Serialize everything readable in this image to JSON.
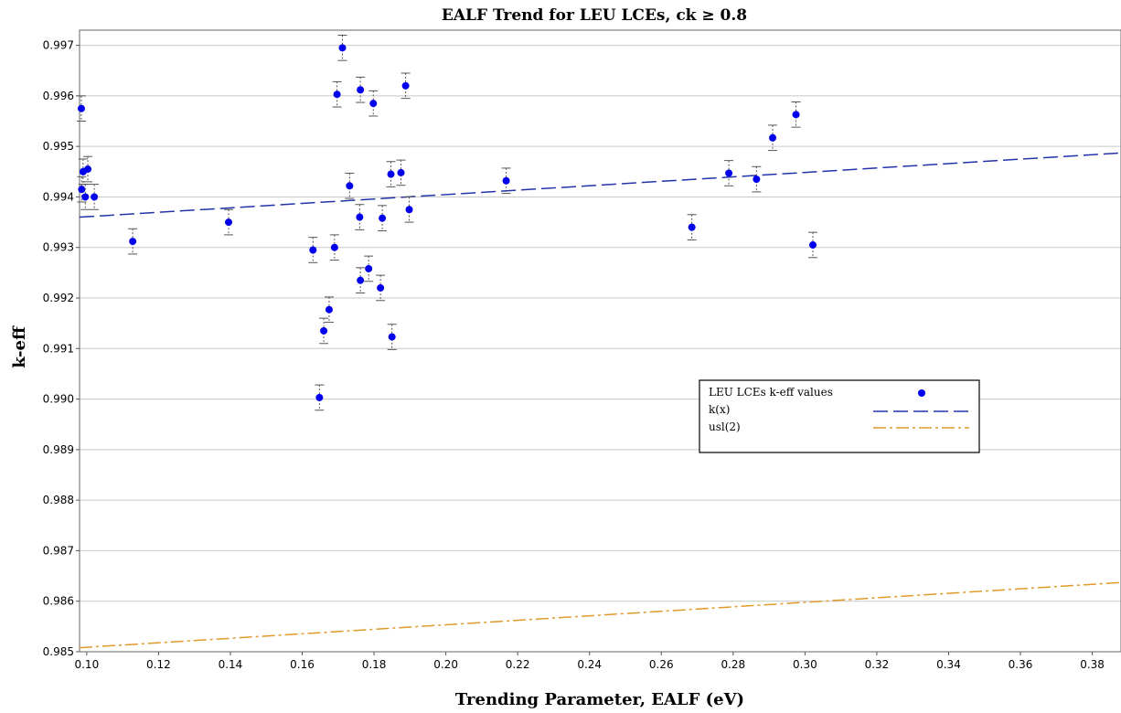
{
  "chart_data": {
    "type": "scatter",
    "title": "EALF Trend for LEU LCEs, ck ≥ 0.8",
    "xlabel": "Trending Parameter, EALF (eV)",
    "ylabel": "k-eff",
    "xlim": [
      0.098,
      0.388
    ],
    "ylim": [
      0.985,
      0.9973
    ],
    "x_ticks": [
      0.1,
      0.12,
      0.14,
      0.16,
      0.18,
      0.2,
      0.22,
      0.24,
      0.26,
      0.28,
      0.3,
      0.32,
      0.34,
      0.36,
      0.38
    ],
    "x_tick_labels": [
      "0.10",
      "0.12",
      "0.14",
      "0.16",
      "0.18",
      "0.20",
      "0.22",
      "0.24",
      "0.26",
      "0.28",
      "0.30",
      "0.32",
      "0.34",
      "0.36",
      "0.38"
    ],
    "y_ticks": [
      0.985,
      0.986,
      0.987,
      0.988,
      0.989,
      0.99,
      0.991,
      0.992,
      0.993,
      0.994,
      0.995,
      0.996,
      0.997
    ],
    "y_tick_labels": [
      "0.985",
      "0.986",
      "0.987",
      "0.988",
      "0.989",
      "0.990",
      "0.991",
      "0.992",
      "0.993",
      "0.994",
      "0.995",
      "0.996",
      "0.997"
    ],
    "grid": "horizontal",
    "legend_position": "center-right",
    "series": [
      {
        "name": "LEU LCEs k-eff values",
        "kind": "points_with_error_bars",
        "color": "#0000ee",
        "error": 0.00025,
        "points": [
          {
            "x": 0.0985,
            "y": 0.99575
          },
          {
            "x": 0.0986,
            "y": 0.99415
          },
          {
            "x": 0.099,
            "y": 0.9945
          },
          {
            "x": 0.0996,
            "y": 0.994
          },
          {
            "x": 0.1003,
            "y": 0.99455
          },
          {
            "x": 0.1021,
            "y": 0.994
          },
          {
            "x": 0.1128,
            "y": 0.99312
          },
          {
            "x": 0.1395,
            "y": 0.9935
          },
          {
            "x": 0.163,
            "y": 0.99295
          },
          {
            "x": 0.1648,
            "y": 0.99003
          },
          {
            "x": 0.166,
            "y": 0.99135
          },
          {
            "x": 0.1675,
            "y": 0.99177
          },
          {
            "x": 0.169,
            "y": 0.993
          },
          {
            "x": 0.1697,
            "y": 0.99603
          },
          {
            "x": 0.1712,
            "y": 0.99695
          },
          {
            "x": 0.1732,
            "y": 0.99422
          },
          {
            "x": 0.176,
            "y": 0.9936
          },
          {
            "x": 0.1762,
            "y": 0.99235
          },
          {
            "x": 0.1762,
            "y": 0.99612
          },
          {
            "x": 0.1785,
            "y": 0.99258
          },
          {
            "x": 0.1798,
            "y": 0.99585
          },
          {
            "x": 0.1818,
            "y": 0.9922
          },
          {
            "x": 0.1823,
            "y": 0.99358
          },
          {
            "x": 0.1847,
            "y": 0.99445
          },
          {
            "x": 0.185,
            "y": 0.99123
          },
          {
            "x": 0.1875,
            "y": 0.99448
          },
          {
            "x": 0.1888,
            "y": 0.9962
          },
          {
            "x": 0.1898,
            "y": 0.99375
          },
          {
            "x": 0.2168,
            "y": 0.99432
          },
          {
            "x": 0.2685,
            "y": 0.9934
          },
          {
            "x": 0.2788,
            "y": 0.99447
          },
          {
            "x": 0.2865,
            "y": 0.99435
          },
          {
            "x": 0.291,
            "y": 0.99517
          },
          {
            "x": 0.2975,
            "y": 0.99563
          },
          {
            "x": 0.3022,
            "y": 0.99305
          }
        ]
      },
      {
        "name": "k(x)",
        "kind": "line",
        "color": "#2233aa",
        "dash": "16 6",
        "x": [
          0.098,
          0.388
        ],
        "y": [
          0.9936,
          0.99487
        ]
      },
      {
        "name": "usl(2)",
        "kind": "line",
        "color": "#e09a2a",
        "dash": "14 4 3 4",
        "x": [
          0.098,
          0.388
        ],
        "y": [
          0.98508,
          0.98637
        ]
      }
    ]
  }
}
